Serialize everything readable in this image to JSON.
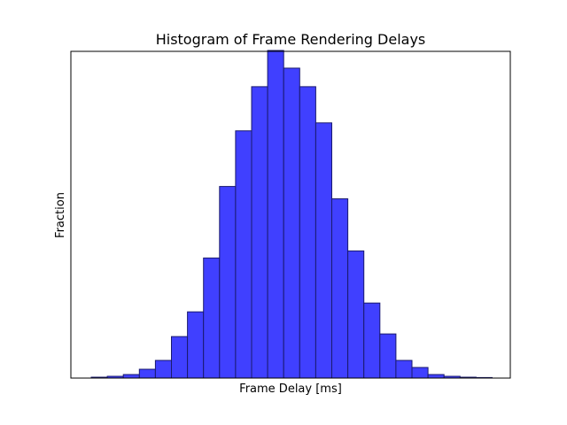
{
  "chart_data": {
    "type": "bar",
    "title": "Histogram of Frame Rendering Delays",
    "xlabel": "Frame Delay [ms]",
    "ylabel": "Fraction",
    "x_ticks_shown": false,
    "y_ticks_shown": false,
    "grid": false,
    "legend": "none",
    "ylim": [
      0,
      370
    ],
    "values": [
      1,
      2,
      4,
      10,
      20,
      47,
      75,
      136,
      217,
      280,
      330,
      371,
      351,
      330,
      289,
      203,
      144,
      85,
      50,
      20,
      12,
      4,
      2,
      1,
      0
    ],
    "bar_color": "#4040ff",
    "bar_edge_color": "#1a1a6e"
  }
}
